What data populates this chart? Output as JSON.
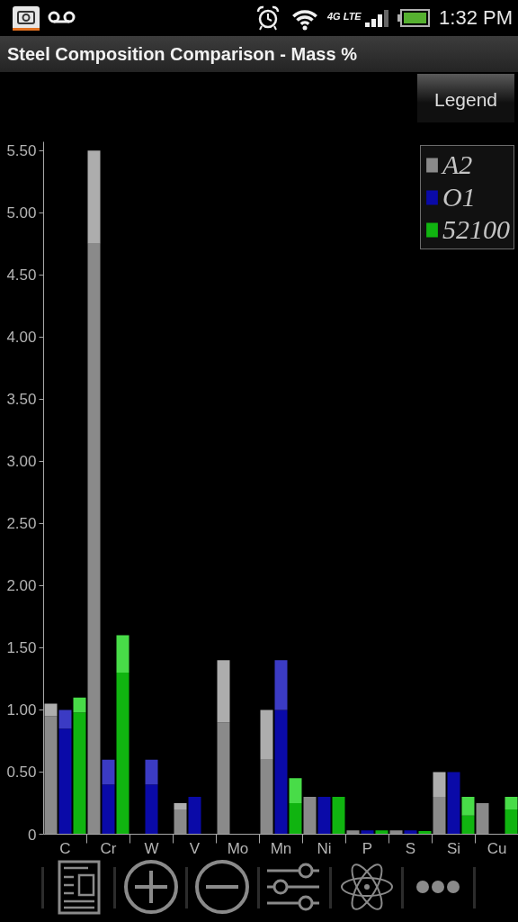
{
  "chart_data": {
    "type": "bar",
    "title": "Steel Composition Comparison - Mass %",
    "annotations": [
      "1:32 PM",
      "Legend",
      "4G LTE"
    ],
    "categories": [
      null,
      "C",
      null,
      null,
      "Cr",
      null,
      null,
      "W",
      null,
      null,
      "V",
      null,
      null,
      "Mo",
      null,
      null,
      "Mn",
      null,
      null,
      "Ni",
      null,
      null,
      "P",
      null,
      null,
      "S",
      null,
      null,
      "Si",
      null,
      null,
      "Cu",
      null
    ],
    "stacked": true,
    "series": [
      {
        "name": "A2",
        "color": "#8a8a8a",
        "values": [
          0.95,
          null,
          null,
          4.75,
          null,
          null,
          null,
          null,
          null,
          0.2,
          null,
          null,
          0.9,
          null,
          null,
          0.6,
          null,
          null,
          0.3,
          null,
          null,
          0.03,
          null,
          null,
          0.03,
          null,
          null,
          0.3,
          null,
          null,
          0.25,
          null,
          null
        ]
      },
      {
        "color": "#adadad",
        "values": [
          0.1,
          null,
          null,
          0.75,
          null,
          null,
          null,
          null,
          null,
          0.05,
          null,
          null,
          0.5,
          null,
          null,
          0.4,
          null,
          null,
          null,
          null,
          null,
          null,
          null,
          null,
          null,
          null,
          null,
          0.2,
          null,
          null,
          null,
          null,
          null
        ]
      },
      {
        "name": "O1",
        "color": "#0a0aa8",
        "values": [
          null,
          0.85,
          null,
          null,
          0.4,
          null,
          null,
          0.4,
          null,
          null,
          0.3,
          null,
          null,
          null,
          null,
          null,
          1.0,
          null,
          null,
          0.3,
          null,
          null,
          0.03,
          null,
          null,
          0.03,
          null,
          null,
          0.5,
          null,
          null,
          null,
          null
        ]
      },
      {
        "color": "#3b3bc4",
        "values": [
          null,
          0.15,
          null,
          null,
          0.2,
          null,
          null,
          0.2,
          null,
          null,
          null,
          null,
          null,
          null,
          null,
          null,
          0.4,
          null,
          null,
          null,
          null,
          null,
          null,
          null,
          null,
          null,
          null,
          null,
          null,
          null,
          null,
          null,
          null
        ]
      },
      {
        "name": "52100",
        "color": "#10b410",
        "values": [
          null,
          null,
          0.98,
          null,
          null,
          1.3,
          null,
          null,
          null,
          null,
          null,
          null,
          null,
          null,
          null,
          null,
          null,
          0.25,
          null,
          null,
          0.3,
          null,
          null,
          0.03,
          null,
          null,
          0.025,
          null,
          null,
          0.15,
          null,
          null,
          0.2
        ]
      },
      {
        "color": "#48dc48",
        "values": [
          null,
          null,
          0.12,
          null,
          null,
          0.3,
          null,
          null,
          null,
          null,
          null,
          null,
          null,
          null,
          null,
          null,
          null,
          0.2,
          null,
          null,
          null,
          null,
          null,
          null,
          null,
          null,
          null,
          null,
          null,
          0.15,
          null,
          null,
          0.1
        ]
      }
    ],
    "ylim": [
      0,
      5.57
    ],
    "yticks": [
      0,
      {
        "value": 0.5,
        "label": "0.50"
      },
      {
        "value": 1,
        "label": "1.00"
      },
      {
        "value": 1.5,
        "label": "1.50"
      },
      {
        "value": 2,
        "label": "2.00"
      },
      {
        "value": 2.5,
        "label": "2.50"
      },
      {
        "value": 3,
        "label": "3.00"
      },
      {
        "value": 3.5,
        "label": "3.50"
      },
      {
        "value": 4,
        "label": "4.00"
      },
      {
        "value": 4.5,
        "label": "4.50"
      },
      {
        "value": 5,
        "label": "5.00"
      },
      {
        "value": 5.5,
        "label": "5.50"
      }
    ],
    "legend": "top right"
  }
}
